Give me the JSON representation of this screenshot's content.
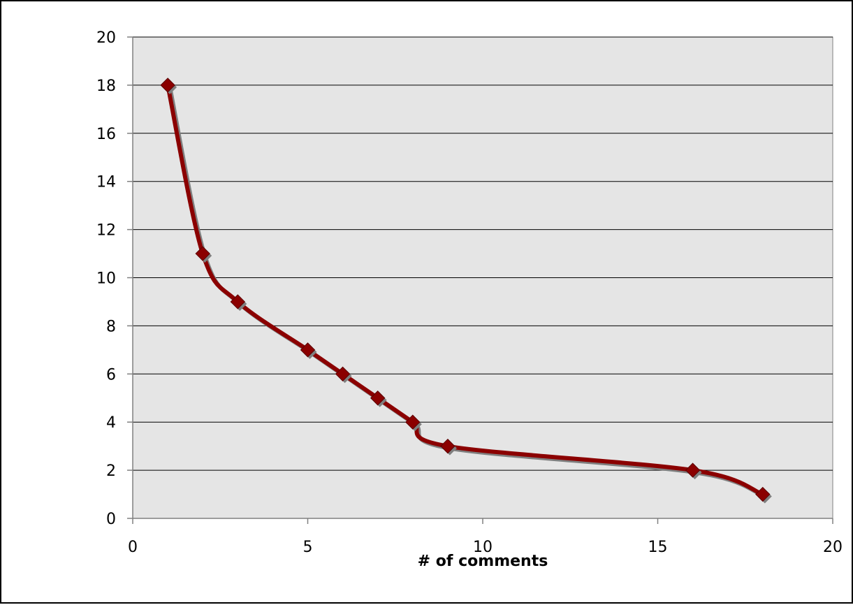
{
  "chart_data": {
    "type": "scatter",
    "title": "",
    "xlabel": "# of comments",
    "ylabel": "",
    "xlim": [
      0,
      20
    ],
    "ylim": [
      0,
      20
    ],
    "x_ticks": [
      0,
      5,
      10,
      15,
      20
    ],
    "y_ticks": [
      0,
      2,
      4,
      6,
      8,
      10,
      12,
      14,
      16,
      18,
      20
    ],
    "grid": "horizontal",
    "legend": "none",
    "line_style": "smoothed line with diamond markers",
    "series": [
      {
        "x": [
          1,
          2,
          3,
          5,
          6,
          7,
          8,
          9,
          16,
          18
        ],
        "y": [
          18,
          11,
          9,
          7,
          6,
          5,
          4,
          3,
          2,
          1
        ],
        "color": "#8b0000",
        "marker": "diamond"
      }
    ],
    "colors": {
      "plot_background": "#e5e5e5",
      "gridline": "#000000",
      "axis": "#808080",
      "frame": "#000000"
    }
  }
}
